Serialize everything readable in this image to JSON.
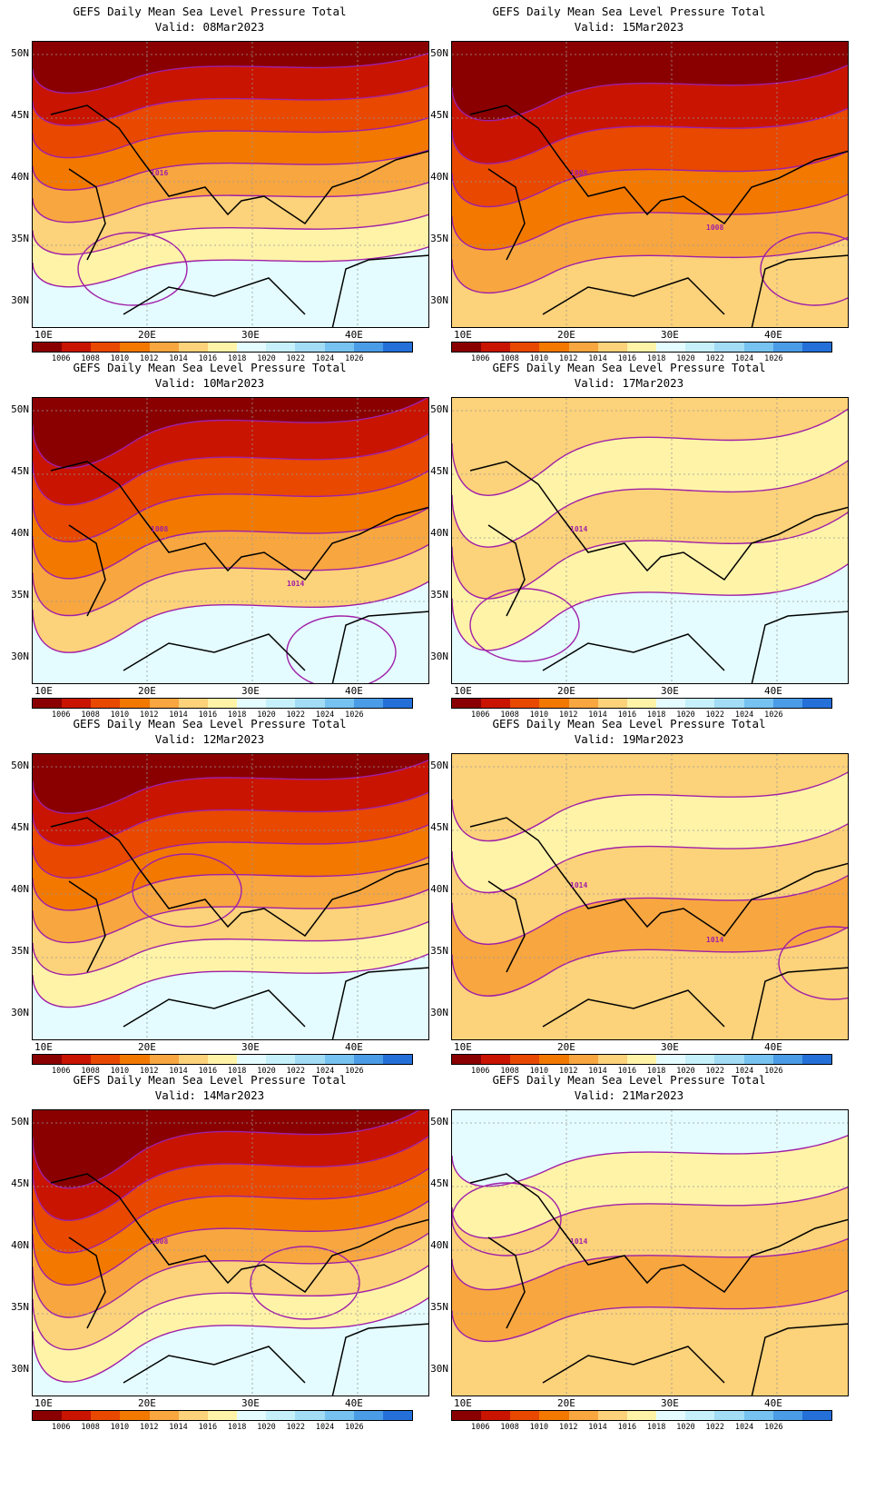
{
  "panels": [
    {
      "title": "GEFS Daily Mean Sea Level Pressure Total",
      "valid": "Valid: 08Mar2023",
      "labels": [
        "1016"
      ]
    },
    {
      "title": "GEFS Daily Mean Sea Level Pressure Total",
      "valid": "Valid: 15Mar2023",
      "labels": [
        "1008",
        "1008"
      ]
    },
    {
      "title": "GEFS Daily Mean Sea Level Pressure Total",
      "valid": "Valid: 10Mar2023",
      "labels": [
        "1008",
        "1014"
      ]
    },
    {
      "title": "GEFS Daily Mean Sea Level Pressure Total",
      "valid": "Valid: 17Mar2023",
      "labels": [
        "1014"
      ]
    },
    {
      "title": "GEFS Daily Mean Sea Level Pressure Total",
      "valid": "Valid: 12Mar2023",
      "labels": []
    },
    {
      "title": "GEFS Daily Mean Sea Level Pressure Total",
      "valid": "Valid: 19Mar2023",
      "labels": [
        "1014",
        "1014"
      ]
    },
    {
      "title": "GEFS Daily Mean Sea Level Pressure Total",
      "valid": "Valid: 14Mar2023",
      "labels": [
        "1008"
      ]
    },
    {
      "title": "GEFS Daily Mean Sea Level Pressure Total",
      "valid": "Valid: 21Mar2023",
      "labels": [
        "1014"
      ]
    }
  ],
  "axes": {
    "lat_labels": [
      "50N",
      "45N",
      "40N",
      "35N",
      "30N"
    ],
    "lon_labels": [
      "10E",
      "20E",
      "30E",
      "40E"
    ]
  },
  "colorbar": {
    "labels": [
      "1006",
      "1008",
      "1010",
      "1012",
      "1014",
      "1016",
      "1018",
      "1020",
      "1022",
      "1024",
      "1026"
    ],
    "colors": [
      "#8a0000",
      "#c81400",
      "#e84800",
      "#f27800",
      "#f8a640",
      "#fcd27a",
      "#fff3a8",
      "#e4fcff",
      "#c6f0fa",
      "#a2dcf5",
      "#76c2f0",
      "#4a9ce6",
      "#2470d8"
    ]
  },
  "contour_color": "#a01fa8"
}
